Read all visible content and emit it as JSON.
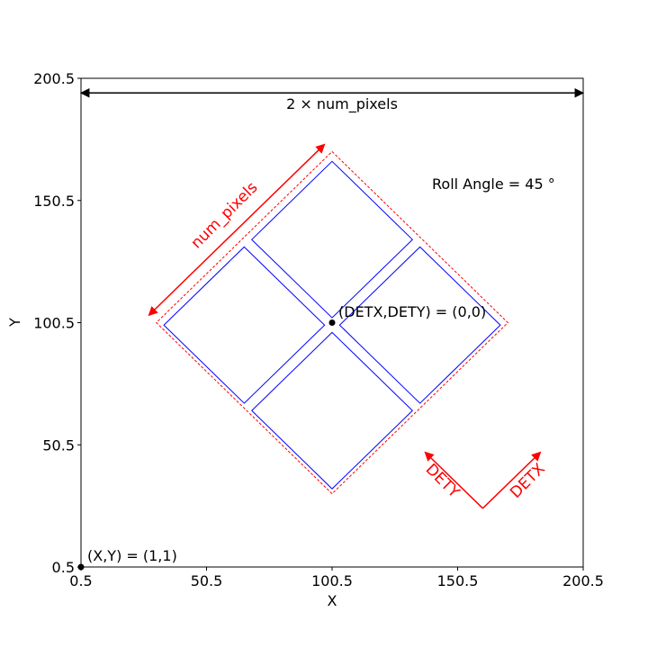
{
  "axes": {
    "xlabel": "X",
    "ylabel": "Y",
    "xlim": [
      0.5,
      200.5
    ],
    "ylim": [
      0.5,
      200.5
    ],
    "xticks": [
      "0.5",
      "50.5",
      "100.5",
      "150.5",
      "200.5"
    ],
    "yticks": [
      "0.5",
      "50.5",
      "100.5",
      "150.5",
      "200.5"
    ]
  },
  "annotations": {
    "width_label": "2 × num_pixels",
    "num_pixels_label": "num_pixels",
    "roll_angle_label": "Roll Angle = 45 °",
    "center_label": "(DETX,DETY) = (0,0)",
    "origin_label": "(X,Y) = (1,1)",
    "detx_label": "DETX",
    "dety_label": "DETY"
  },
  "colors": {
    "detector_outline": "#0000ff",
    "boundary": "#ff0000",
    "arrow": "#ff0000",
    "axis": "#000000"
  },
  "chart_data": {
    "type": "diagram",
    "roll_angle_deg": 45,
    "center": [
      100.5,
      100.5
    ],
    "origin_point": [
      0.5,
      0.5
    ],
    "quadrants": [
      {
        "name": "top",
        "corners": [
          [
            100.5,
            166.5
          ],
          [
            132.5,
            134.5
          ],
          [
            100.5,
            102.5
          ],
          [
            68.5,
            134.5
          ]
        ]
      },
      {
        "name": "left",
        "corners": [
          [
            65.5,
            131.5
          ],
          [
            97.5,
            99.5
          ],
          [
            65.5,
            67.5
          ],
          [
            33.5,
            99.5
          ]
        ]
      },
      {
        "name": "right",
        "corners": [
          [
            135.5,
            131.5
          ],
          [
            167.5,
            99.5
          ],
          [
            135.5,
            67.5
          ],
          [
            103.5,
            99.5
          ]
        ]
      },
      {
        "name": "bottom",
        "corners": [
          [
            100.5,
            96.5
          ],
          [
            132.5,
            64.5
          ],
          [
            100.5,
            32.5
          ],
          [
            68.5,
            64.5
          ]
        ]
      }
    ],
    "boundary": [
      [
        100.5,
        170.5
      ],
      [
        170.5,
        100.5
      ],
      [
        100.5,
        30.5
      ],
      [
        30.5,
        100.5
      ]
    ],
    "num_pixels_arrow": [
      [
        27.5,
        103.5
      ],
      [
        97.5,
        173.5
      ]
    ],
    "width_arrow": [
      [
        0.5,
        194.5
      ],
      [
        200.5,
        194.5
      ]
    ],
    "detx_arrow": [
      [
        160.5,
        24.5
      ],
      [
        183.5,
        47.5
      ]
    ],
    "dety_arrow": [
      [
        160.5,
        24.5
      ],
      [
        137.5,
        47.5
      ]
    ]
  }
}
